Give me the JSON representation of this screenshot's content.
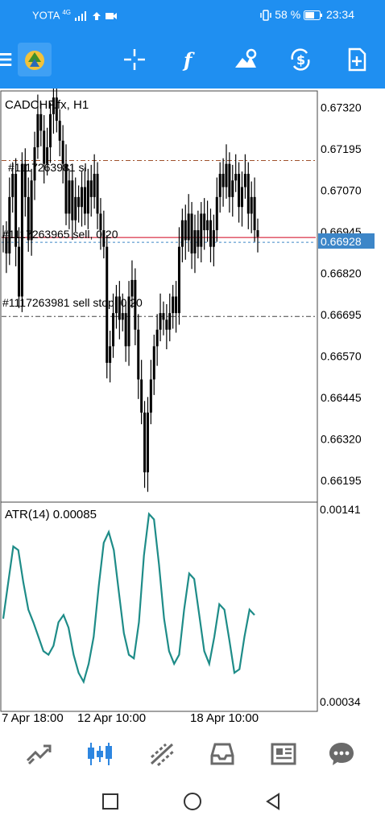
{
  "status_bar": {
    "carrier": "YOTA",
    "network": "4G",
    "battery": "58 %",
    "time": "23:34"
  },
  "toolbar": {
    "icons": [
      "menu-icon",
      "metatrader-logo",
      "crosshair-icon",
      "indicators-icon",
      "objects-icon",
      "timeframe-icon",
      "new-order-icon"
    ]
  },
  "chart": {
    "symbol_label": "CADCHF.fx, H1",
    "price_ticks": [
      "0.67320",
      "0.67195",
      "0.67070",
      "0.66945",
      "0.66820",
      "0.66695",
      "0.66570",
      "0.66445",
      "0.66320",
      "0.66195"
    ],
    "current_price": "0.66928",
    "order_lines": [
      {
        "label": "#1117263981 sl",
        "price": 0.6716,
        "color": "#a0522d"
      },
      {
        "label": "#1117263965 sell, 0.20",
        "price": 0.66928,
        "color": "#d0021b"
      },
      {
        "label": "#1117263981 sell stop, 0.20",
        "price": 0.6669,
        "color": "#444444"
      }
    ],
    "indicator": {
      "label": "ATR(14) 0.00085",
      "ticks": [
        "0.00141",
        "0.00034"
      ]
    },
    "time_labels": [
      "7 Apr 18:00",
      "12 Apr 10:00",
      "18 Apr 10:00"
    ]
  },
  "chart_data": [
    {
      "type": "candlestick",
      "title": "CADCHF.fx, H1",
      "ylim": [
        0.6613,
        0.6737
      ],
      "series": [
        {
          "name": "CADCHF.fx",
          "values": [
            0.6693,
            0.6688,
            0.6705,
            0.6712,
            0.669,
            0.6675,
            0.6715,
            0.6705,
            0.6692,
            0.671,
            0.672,
            0.673,
            0.6725,
            0.6715,
            0.672,
            0.673,
            0.6735,
            0.6728,
            0.6722,
            0.6715,
            0.67,
            0.671,
            0.6698,
            0.6705,
            0.6702,
            0.6708,
            0.67,
            0.671,
            0.6705,
            0.6712,
            0.67,
            0.6695,
            0.669,
            0.6655,
            0.666,
            0.667,
            0.6675,
            0.6668,
            0.667,
            0.666,
            0.6675,
            0.668,
            0.6665,
            0.665,
            0.664,
            0.6622,
            0.664,
            0.665,
            0.666,
            0.6665,
            0.667,
            0.6668,
            0.6665,
            0.667,
            0.6675,
            0.667,
            0.669,
            0.6698,
            0.6692,
            0.67,
            0.6688,
            0.6695,
            0.669,
            0.67,
            0.6695,
            0.6698,
            0.669,
            0.6695,
            0.6705,
            0.6712,
            0.6708,
            0.6715,
            0.6705,
            0.671,
            0.6712,
            0.6702,
            0.6708,
            0.6712,
            0.67,
            0.6705,
            0.6695,
            0.6693
          ]
        }
      ]
    },
    {
      "type": "line",
      "title": "ATR(14) 0.00085",
      "ylim": [
        0.00034,
        0.00141
      ],
      "series": [
        {
          "name": "ATR(14)",
          "values": [
            0.0008,
            0.001,
            0.0012,
            0.00118,
            0.001,
            0.00085,
            0.00078,
            0.0007,
            0.00062,
            0.0006,
            0.00065,
            0.00078,
            0.00082,
            0.00075,
            0.0006,
            0.0005,
            0.00045,
            0.00055,
            0.0007,
            0.00098,
            0.00122,
            0.00128,
            0.00118,
            0.00095,
            0.00072,
            0.0006,
            0.00058,
            0.00078,
            0.00115,
            0.00138,
            0.00135,
            0.0011,
            0.0008,
            0.00062,
            0.00055,
            0.0006,
            0.00085,
            0.00105,
            0.00102,
            0.00082,
            0.00062,
            0.00055,
            0.0007,
            0.00088,
            0.00085,
            0.00068,
            0.0005,
            0.00052,
            0.0007,
            0.00085,
            0.00082
          ]
        }
      ]
    }
  ],
  "bottom_nav": {
    "items": [
      "Quotes",
      "Chart",
      "Trade",
      "History",
      "News",
      "Messages"
    ]
  }
}
